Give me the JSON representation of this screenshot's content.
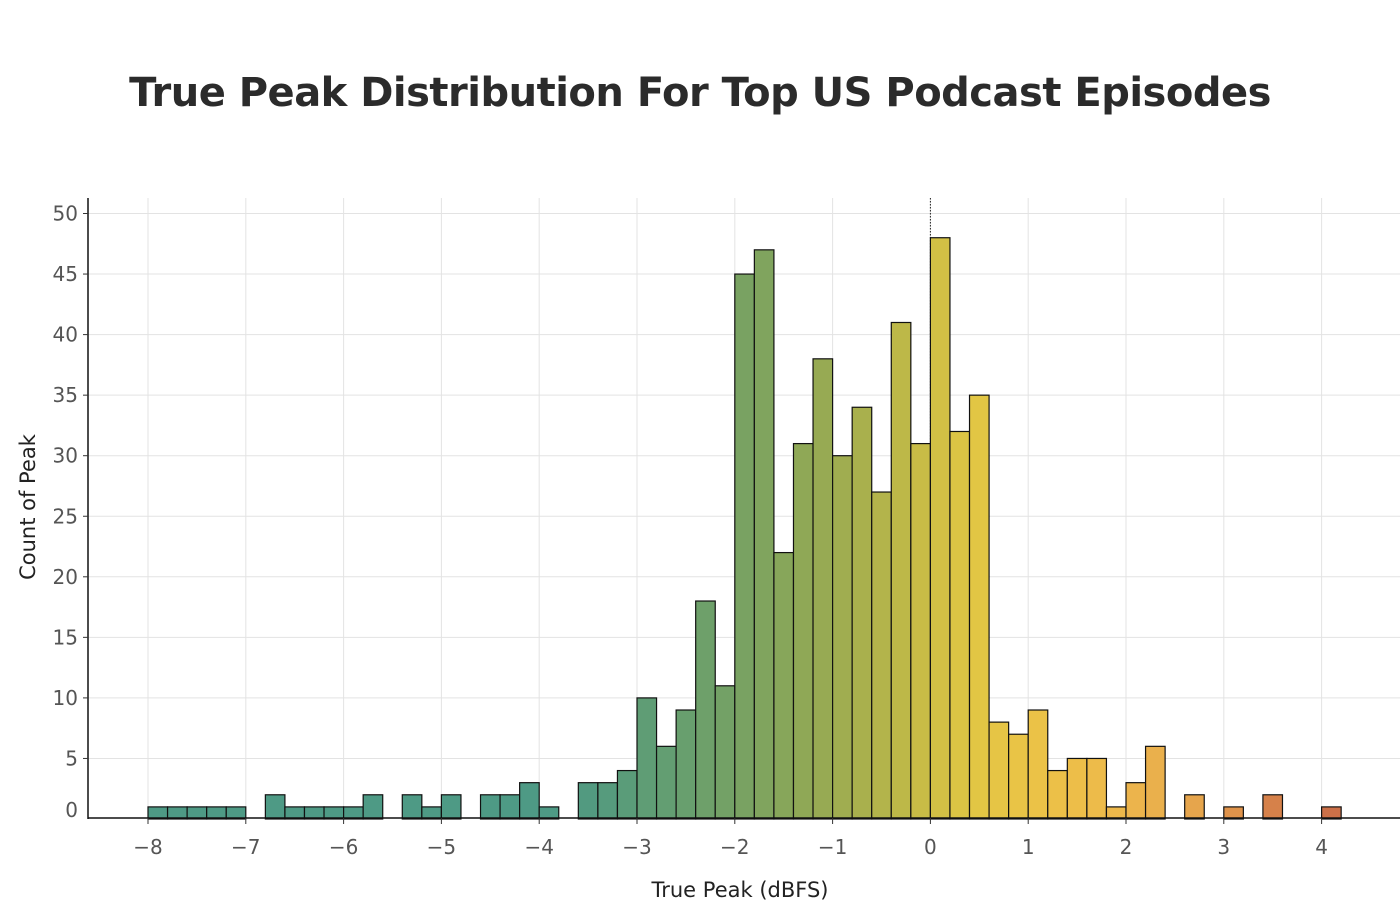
{
  "chart_data": {
    "type": "bar",
    "title": "True Peak Distribution For Top US Podcast Episodes",
    "xlabel": "True Peak (dBFS)",
    "ylabel": "Count of Peak",
    "bin_width": 0.2,
    "xlim": [
      -8.6,
      4.6
    ],
    "ylim": [
      0,
      50
    ],
    "x_ticks": [
      -8,
      -7,
      -6,
      -5,
      -4,
      -3,
      -2,
      -1,
      0,
      1,
      2,
      3,
      4
    ],
    "x_tick_labels": [
      "−8",
      "−7",
      "−6",
      "−5",
      "−4",
      "−3",
      "−2",
      "−1",
      "0",
      "1",
      "2",
      "3",
      "4"
    ],
    "y_ticks": [
      0,
      5,
      10,
      15,
      20,
      25,
      30,
      35,
      40,
      45,
      50
    ],
    "y_tick_labels": [
      "0",
      "5",
      "10",
      "15",
      "20",
      "25",
      "30",
      "35",
      "40",
      "45",
      "50"
    ],
    "grid": true,
    "reference_line_x": 0,
    "bins": [
      {
        "x": -8.0,
        "count": 1,
        "color": "#4e9a85"
      },
      {
        "x": -7.8,
        "count": 1,
        "color": "#4e9a85"
      },
      {
        "x": -7.6,
        "count": 1,
        "color": "#4e9a85"
      },
      {
        "x": -7.4,
        "count": 1,
        "color": "#4e9a85"
      },
      {
        "x": -7.2,
        "count": 1,
        "color": "#4e9a85"
      },
      {
        "x": -6.8,
        "count": 2,
        "color": "#4e9a85"
      },
      {
        "x": -6.6,
        "count": 1,
        "color": "#4e9a85"
      },
      {
        "x": -6.4,
        "count": 1,
        "color": "#4e9a85"
      },
      {
        "x": -6.2,
        "count": 1,
        "color": "#4e9a85"
      },
      {
        "x": -6.0,
        "count": 1,
        "color": "#4e9a85"
      },
      {
        "x": -5.8,
        "count": 2,
        "color": "#4e9a85"
      },
      {
        "x": -5.4,
        "count": 2,
        "color": "#4e9a85"
      },
      {
        "x": -5.2,
        "count": 1,
        "color": "#4e9a85"
      },
      {
        "x": -5.0,
        "count": 2,
        "color": "#4e9a85"
      },
      {
        "x": -4.6,
        "count": 2,
        "color": "#4e9a85"
      },
      {
        "x": -4.4,
        "count": 2,
        "color": "#4e9a85"
      },
      {
        "x": -4.2,
        "count": 3,
        "color": "#4e9a85"
      },
      {
        "x": -4.0,
        "count": 1,
        "color": "#4e9a85"
      },
      {
        "x": -3.6,
        "count": 3,
        "color": "#529a80"
      },
      {
        "x": -3.4,
        "count": 3,
        "color": "#569b7d"
      },
      {
        "x": -3.2,
        "count": 4,
        "color": "#5a9c79"
      },
      {
        "x": -3.0,
        "count": 10,
        "color": "#5f9d75"
      },
      {
        "x": -2.8,
        "count": 6,
        "color": "#639e72"
      },
      {
        "x": -2.6,
        "count": 9,
        "color": "#689f6e"
      },
      {
        "x": -2.4,
        "count": 18,
        "color": "#6ea06a"
      },
      {
        "x": -2.2,
        "count": 11,
        "color": "#73a166"
      },
      {
        "x": -2.0,
        "count": 45,
        "color": "#79a262"
      },
      {
        "x": -1.8,
        "count": 47,
        "color": "#80a45e"
      },
      {
        "x": -1.6,
        "count": 22,
        "color": "#87a65a"
      },
      {
        "x": -1.4,
        "count": 31,
        "color": "#8fa856"
      },
      {
        "x": -1.2,
        "count": 38,
        "color": "#97aa53"
      },
      {
        "x": -1.0,
        "count": 30,
        "color": "#a0ad50"
      },
      {
        "x": -0.8,
        "count": 34,
        "color": "#a9b04d"
      },
      {
        "x": -0.6,
        "count": 27,
        "color": "#b3b44b"
      },
      {
        "x": -0.4,
        "count": 41,
        "color": "#bdb848"
      },
      {
        "x": -0.2,
        "count": 31,
        "color": "#c8bc46"
      },
      {
        "x": 0.0,
        "count": 48,
        "color": "#d2c045"
      },
      {
        "x": 0.2,
        "count": 32,
        "color": "#dbc444"
      },
      {
        "x": 0.4,
        "count": 35,
        "color": "#e2c644"
      },
      {
        "x": 0.6,
        "count": 8,
        "color": "#e6c545"
      },
      {
        "x": 0.8,
        "count": 7,
        "color": "#e9c446"
      },
      {
        "x": 1.0,
        "count": 9,
        "color": "#ebc247"
      },
      {
        "x": 1.2,
        "count": 4,
        "color": "#ecc048"
      },
      {
        "x": 1.4,
        "count": 5,
        "color": "#edbe49"
      },
      {
        "x": 1.6,
        "count": 5,
        "color": "#edbb4a"
      },
      {
        "x": 1.8,
        "count": 1,
        "color": "#edb84b"
      },
      {
        "x": 2.0,
        "count": 3,
        "color": "#ecb44c"
      },
      {
        "x": 2.2,
        "count": 6,
        "color": "#eab04c"
      },
      {
        "x": 2.6,
        "count": 2,
        "color": "#e6a54c"
      },
      {
        "x": 3.0,
        "count": 1,
        "color": "#df934b"
      },
      {
        "x": 3.4,
        "count": 2,
        "color": "#d6814a"
      },
      {
        "x": 4.0,
        "count": 1,
        "color": "#cc7048"
      }
    ]
  }
}
